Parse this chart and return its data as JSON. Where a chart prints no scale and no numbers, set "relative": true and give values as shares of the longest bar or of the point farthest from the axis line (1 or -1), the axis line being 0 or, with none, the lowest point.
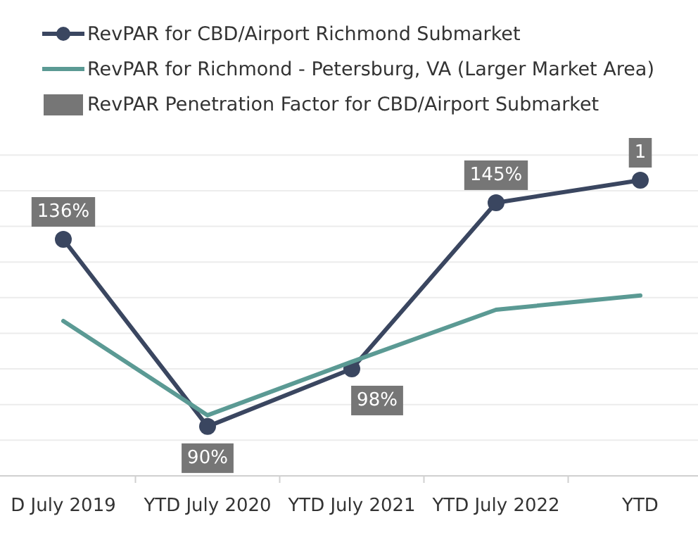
{
  "chart_data": {
    "type": "line",
    "relative": true,
    "grid": "y",
    "legend": "top left",
    "marker": "circle",
    "categories": [
      "D July 2019",
      "YTD July 2020",
      "YTD July 2021",
      "YTD July 2022",
      "YTD"
    ],
    "series": [
      {
        "name": "RevPAR for CBD/Airport Richmond Submarket",
        "color": "#3a4660",
        "values": [
          0.8,
          0.167,
          0.362,
          0.924,
          1
        ]
      },
      {
        "name": "RevPAR for Richmond - Petersburg, VA (Larger Market Area)",
        "color": "#5b9a94",
        "marker": "none",
        "values": [
          0.524,
          0.205,
          0.386,
          0.562,
          0.61
        ]
      },
      {
        "name": "RevPAR Penetration Factor for CBD/Airport Submarket",
        "color": "#767676",
        "type": "other",
        "values": [
          null,
          null,
          null,
          null,
          null
        ]
      }
    ],
    "annotations": [
      {
        "text": "136%",
        "x": "D July 2019",
        "y": 0.8
      },
      {
        "text": "90%",
        "x": "YTD July 2020",
        "y": 0.167
      },
      {
        "text": "98%",
        "x": "YTD July 2021",
        "y": 0.362
      },
      {
        "text": "145%",
        "x": "YTD July 2022",
        "y": 0.924
      },
      {
        "text": "1",
        "x": "YTD",
        "y": 1
      }
    ]
  }
}
